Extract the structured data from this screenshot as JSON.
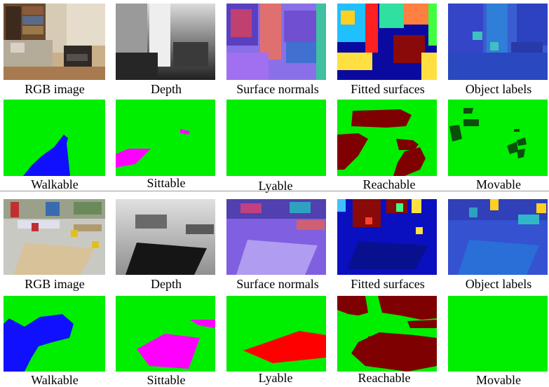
{
  "colors": {
    "background": "#00ee00",
    "walkable": "#1010ff",
    "sittable": "#ff00ff",
    "lyable": "#ff0000",
    "reachable": "#7f0000",
    "movable": "#0b4f0b"
  },
  "scenes": [
    {
      "captions": {
        "rgb": "RGB image",
        "depth": "Depth",
        "normals": "Surface normals",
        "fitted": "Fitted surfaces",
        "objects": "Object labels",
        "walkable": "Walkable",
        "sittable": "Sittable",
        "lyable": "Lyable",
        "reachable": "Reachable",
        "movable": "Movable"
      }
    },
    {
      "captions": {
        "rgb": "RGB image",
        "depth": "Depth",
        "normals": "Surface normals",
        "fitted": "Fitted surfaces",
        "objects": "Object labels",
        "walkable": "Walkable",
        "sittable": "Sittable",
        "lyable": "Lyable",
        "reachable": "Reachable",
        "movable": "Movable"
      }
    }
  ]
}
